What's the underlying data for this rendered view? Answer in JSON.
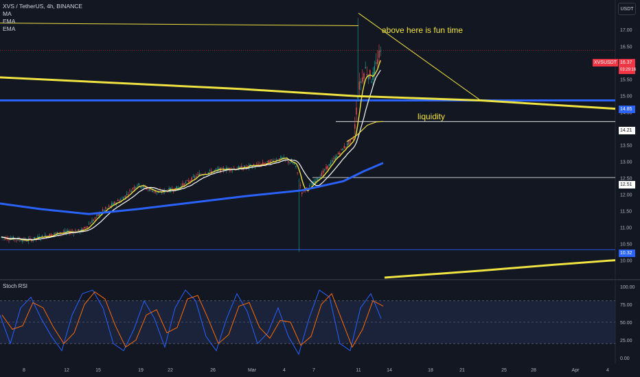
{
  "header": {
    "symbol_line": "XVS / TetherUS, 4h, BINANCE",
    "indicators": [
      "MA",
      "EMA",
      "EMA"
    ]
  },
  "toolbar": {
    "currency_label": "USDT"
  },
  "symbol_tag": {
    "name": "XVSUSDT",
    "price": "16.37",
    "countdown": "03:29:16"
  },
  "price_tags": [
    {
      "value": "14.85",
      "color": "#2962ff"
    },
    {
      "value": "14.21",
      "color": "#ffffff"
    },
    {
      "value": "12.51",
      "color": "#ffffff"
    },
    {
      "value": "10.32",
      "color": "#2962ff"
    }
  ],
  "annotations": {
    "top_text": "above here is fun time",
    "liquidity_text": "liquidity"
  },
  "oscillator": {
    "name": "Stoch RSI"
  },
  "colors": {
    "background": "#131722",
    "up": "#26a69a",
    "down": "#ef5350",
    "yellow": "#f0e442",
    "blue": "#2962ff"
  },
  "chart_data": [
    {
      "type": "candlestick",
      "title": "XVS / TetherUS, 4h, BINANCE",
      "price_axis_ticks": [
        "17.50",
        "17.00",
        "16.50",
        "16.00",
        "15.50",
        "15.00",
        "14.50",
        "14.00",
        "13.50",
        "13.00",
        "12.50",
        "12.00",
        "11.50",
        "11.00",
        "10.50",
        "10.00",
        "9.50"
      ],
      "ylim": [
        9.45,
        17.9
      ],
      "time_axis_ticks": [
        "8",
        "12",
        "15",
        "19",
        "22",
        "26",
        "Mar",
        "4",
        "7",
        "11",
        "14",
        "18",
        "21",
        "25",
        "28",
        "Apr",
        "4"
      ],
      "last_price": 16.37,
      "horizontal_levels": [
        14.85,
        14.21,
        12.51,
        10.32
      ],
      "price_path": [
        [
          0,
          10.7
        ],
        [
          40,
          10.6
        ],
        [
          80,
          10.8
        ],
        [
          120,
          10.9
        ],
        [
          150,
          11.5
        ],
        [
          180,
          11.9
        ],
        [
          200,
          12.3
        ],
        [
          230,
          12.05
        ],
        [
          260,
          12.2
        ],
        [
          290,
          12.6
        ],
        [
          320,
          12.75
        ],
        [
          350,
          12.8
        ],
        [
          380,
          12.9
        ],
        [
          410,
          13.1
        ],
        [
          430,
          12.9
        ],
        [
          440,
          12.05
        ],
        [
          460,
          12.4
        ],
        [
          480,
          12.9
        ],
        [
          500,
          13.4
        ],
        [
          515,
          13.7
        ],
        [
          522,
          15.2
        ],
        [
          532,
          15.8
        ],
        [
          542,
          15.5
        ],
        [
          552,
          16.2
        ],
        [
          558,
          16.37
        ]
      ]
    },
    {
      "type": "line",
      "title": "Stoch RSI",
      "yticks": [
        "100.00",
        "75.00",
        "50.00",
        "25.00",
        "0.00"
      ],
      "ylim": [
        0,
        100
      ],
      "bands": [
        20,
        50,
        80
      ],
      "k_series": [
        [
          0,
          60
        ],
        [
          15,
          20
        ],
        [
          30,
          70
        ],
        [
          45,
          85
        ],
        [
          60,
          55
        ],
        [
          75,
          30
        ],
        [
          90,
          10
        ],
        [
          105,
          60
        ],
        [
          120,
          90
        ],
        [
          135,
          95
        ],
        [
          150,
          70
        ],
        [
          165,
          20
        ],
        [
          180,
          10
        ],
        [
          195,
          40
        ],
        [
          210,
          80
        ],
        [
          225,
          55
        ],
        [
          240,
          15
        ],
        [
          255,
          70
        ],
        [
          270,
          95
        ],
        [
          285,
          80
        ],
        [
          300,
          30
        ],
        [
          315,
          10
        ],
        [
          330,
          55
        ],
        [
          345,
          90
        ],
        [
          360,
          65
        ],
        [
          375,
          20
        ],
        [
          390,
          35
        ],
        [
          405,
          70
        ],
        [
          420,
          30
        ],
        [
          435,
          5
        ],
        [
          450,
          55
        ],
        [
          465,
          95
        ],
        [
          480,
          85
        ],
        [
          495,
          20
        ],
        [
          510,
          10
        ],
        [
          525,
          70
        ],
        [
          540,
          90
        ],
        [
          555,
          55
        ]
      ]
    }
  ]
}
